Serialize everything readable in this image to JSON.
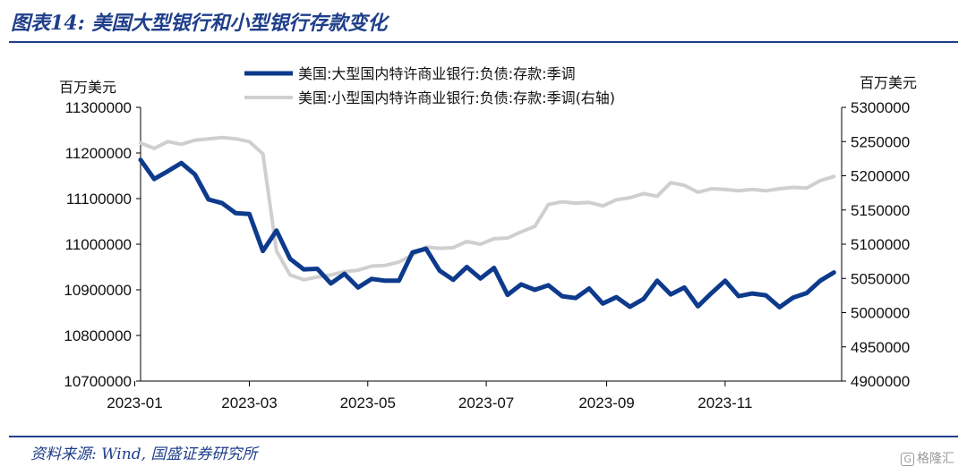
{
  "header": {
    "title": "图表14:  美国大型银行和小型银行存款变化"
  },
  "footer": {
    "source": "资料来源: Wind, 国盛证券研究所",
    "watermark": "格隆汇"
  },
  "chart_data": {
    "type": "line",
    "left_unit": "百万美元",
    "right_unit": "百万美元",
    "x_ticks": [
      "2023-01",
      "2023-03",
      "2023-05",
      "2023-07",
      "2023-09",
      "2023-11"
    ],
    "left_ticks": [
      "11300000",
      "11200000",
      "11100000",
      "11000000",
      "10900000",
      "10800000",
      "10700000"
    ],
    "right_ticks": [
      "5300000",
      "5250000",
      "5200000",
      "5150000",
      "5100000",
      "5050000",
      "5000000",
      "4950000",
      "4900000"
    ],
    "ylim_left": [
      10700000,
      11300000
    ],
    "ylim_right": [
      4900000,
      5300000
    ],
    "x_range": [
      "2023-01-04",
      "2023-12-31"
    ],
    "grid": false,
    "legend_position": "top",
    "series": [
      {
        "name": "美国:大型国内特许商业银行:负债:存款:季调",
        "axis": "left",
        "color": "#0d3a8c",
        "x": [
          "2023-01-04",
          "2023-01-11",
          "2023-01-18",
          "2023-01-25",
          "2023-02-01",
          "2023-02-08",
          "2023-02-15",
          "2023-02-22",
          "2023-03-01",
          "2023-03-08",
          "2023-03-15",
          "2023-03-22",
          "2023-03-29",
          "2023-04-05",
          "2023-04-12",
          "2023-04-19",
          "2023-04-26",
          "2023-05-03",
          "2023-05-10",
          "2023-05-17",
          "2023-05-24",
          "2023-05-31",
          "2023-06-07",
          "2023-06-14",
          "2023-06-21",
          "2023-06-28",
          "2023-07-05",
          "2023-07-12",
          "2023-07-19",
          "2023-07-26",
          "2023-08-02",
          "2023-08-09",
          "2023-08-16",
          "2023-08-23",
          "2023-08-30",
          "2023-09-06",
          "2023-09-13",
          "2023-09-20",
          "2023-09-27",
          "2023-10-04",
          "2023-10-11",
          "2023-10-18",
          "2023-10-25",
          "2023-11-01",
          "2023-11-08",
          "2023-11-15",
          "2023-11-22",
          "2023-11-29",
          "2023-12-06",
          "2023-12-13",
          "2023-12-20",
          "2023-12-27"
        ],
        "values": [
          11185000,
          11143000,
          11160000,
          11178000,
          11153000,
          11098000,
          11090000,
          11068000,
          11066000,
          10985000,
          11030000,
          10968000,
          10945000,
          10946000,
          10914000,
          10935000,
          10905000,
          10924000,
          10920000,
          10920000,
          10982000,
          10990000,
          10942000,
          10922000,
          10950000,
          10925000,
          10948000,
          10889000,
          10912000,
          10900000,
          10910000,
          10886000,
          10882000,
          10903000,
          10870000,
          10884000,
          10863000,
          10880000,
          10920000,
          10890000,
          10905000,
          10864000,
          10893000,
          10920000,
          10886000,
          10892000,
          10888000,
          10862000,
          10883000,
          10893000,
          10920000,
          10938000
        ]
      },
      {
        "name": "美国:小型国内特许商业银行:负债:存款:季调(右轴)",
        "axis": "right",
        "color": "#cfcfcf",
        "x": [
          "2023-01-04",
          "2023-01-11",
          "2023-01-18",
          "2023-01-25",
          "2023-02-01",
          "2023-02-08",
          "2023-02-15",
          "2023-02-22",
          "2023-03-01",
          "2023-03-08",
          "2023-03-15",
          "2023-03-22",
          "2023-03-29",
          "2023-04-05",
          "2023-04-12",
          "2023-04-19",
          "2023-04-26",
          "2023-05-03",
          "2023-05-10",
          "2023-05-17",
          "2023-05-24",
          "2023-05-31",
          "2023-06-07",
          "2023-06-14",
          "2023-06-21",
          "2023-06-28",
          "2023-07-05",
          "2023-07-12",
          "2023-07-19",
          "2023-07-26",
          "2023-08-02",
          "2023-08-09",
          "2023-08-16",
          "2023-08-23",
          "2023-08-30",
          "2023-09-06",
          "2023-09-13",
          "2023-09-20",
          "2023-09-27",
          "2023-10-04",
          "2023-10-11",
          "2023-10-18",
          "2023-10-25",
          "2023-11-01",
          "2023-11-08",
          "2023-11-15",
          "2023-11-22",
          "2023-11-29",
          "2023-12-06",
          "2023-12-13",
          "2023-12-20",
          "2023-12-27"
        ],
        "values": [
          5248000,
          5240000,
          5250000,
          5246000,
          5252000,
          5254000,
          5256000,
          5254000,
          5250000,
          5232000,
          5090000,
          5055000,
          5048000,
          5052000,
          5055000,
          5060000,
          5062000,
          5068000,
          5069000,
          5074000,
          5084000,
          5096000,
          5094000,
          5095000,
          5104000,
          5100000,
          5108000,
          5109000,
          5118000,
          5126000,
          5158000,
          5162000,
          5160000,
          5161000,
          5156000,
          5165000,
          5168000,
          5174000,
          5170000,
          5190000,
          5186000,
          5176000,
          5181000,
          5180000,
          5178000,
          5180000,
          5178000,
          5181000,
          5183000,
          5182000,
          5193000,
          5199000
        ]
      }
    ]
  }
}
